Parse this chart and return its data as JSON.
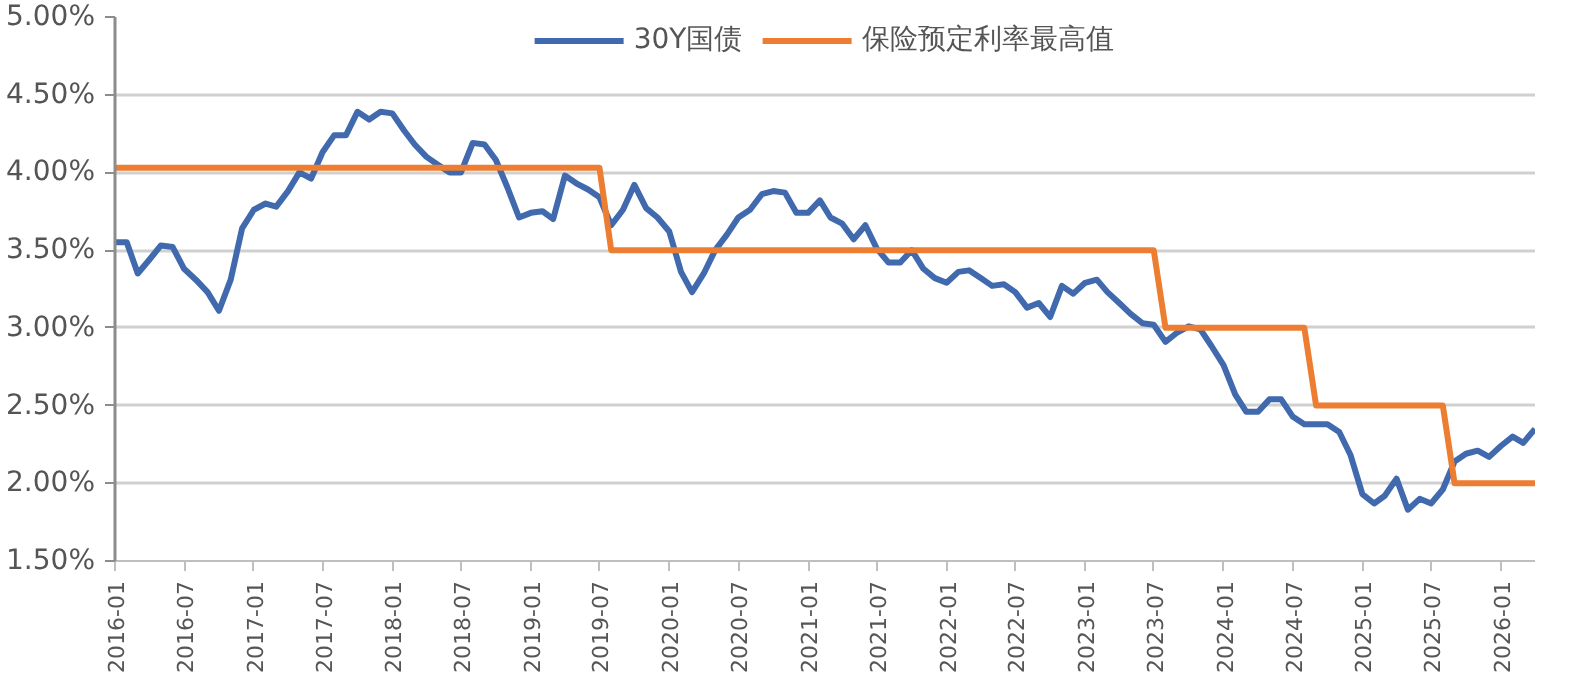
{
  "chart_data": {
    "type": "line",
    "x": [
      "2016-01",
      "2016-02",
      "2016-03",
      "2016-04",
      "2016-05",
      "2016-06",
      "2016-07",
      "2016-08",
      "2016-09",
      "2016-10",
      "2016-11",
      "2016-12",
      "2017-01",
      "2017-02",
      "2017-03",
      "2017-04",
      "2017-05",
      "2017-06",
      "2017-07",
      "2017-08",
      "2017-09",
      "2017-10",
      "2017-11",
      "2017-12",
      "2018-01",
      "2018-02",
      "2018-03",
      "2018-04",
      "2018-05",
      "2018-06",
      "2018-07",
      "2018-08",
      "2018-09",
      "2018-10",
      "2018-11",
      "2018-12",
      "2019-01",
      "2019-02",
      "2019-03",
      "2019-04",
      "2019-05",
      "2019-06",
      "2019-07",
      "2019-08",
      "2019-09",
      "2019-10",
      "2019-11",
      "2019-12",
      "2020-01",
      "2020-02",
      "2020-03",
      "2020-04",
      "2020-05",
      "2020-06",
      "2020-07",
      "2020-08",
      "2020-09",
      "2020-10",
      "2020-11",
      "2020-12",
      "2021-01",
      "2021-02",
      "2021-03",
      "2021-04",
      "2021-05",
      "2021-06",
      "2021-07",
      "2021-08",
      "2021-09",
      "2021-10",
      "2021-11",
      "2021-12",
      "2022-01",
      "2022-02",
      "2022-03",
      "2022-04",
      "2022-05",
      "2022-06",
      "2022-07",
      "2022-08",
      "2022-09",
      "2022-10",
      "2022-11",
      "2022-12",
      "2023-01",
      "2023-02",
      "2023-03",
      "2023-04",
      "2023-05",
      "2023-06",
      "2023-07",
      "2023-08",
      "2023-09",
      "2023-10",
      "2023-11",
      "2023-12",
      "2024-01",
      "2024-02",
      "2024-03",
      "2024-04",
      "2024-05",
      "2024-06",
      "2024-07",
      "2024-08",
      "2024-09",
      "2024-10",
      "2024-11",
      "2024-12",
      "2025-01",
      "2025-02",
      "2025-03",
      "2025-04",
      "2025-05",
      "2025-06",
      "2025-07",
      "2025-08",
      "2025-09",
      "2025-10",
      "2025-11",
      "2025-12",
      "2026-01",
      "2026-02",
      "2026-03",
      "2026-04"
    ],
    "series": [
      {
        "name": "30Y国债",
        "color": "#4169ad",
        "values": [
          3.55,
          3.55,
          3.35,
          3.44,
          3.53,
          3.52,
          3.38,
          3.31,
          3.23,
          3.11,
          3.31,
          3.64,
          3.76,
          3.8,
          3.78,
          3.88,
          4.0,
          3.96,
          4.13,
          4.24,
          4.24,
          4.39,
          4.34,
          4.39,
          4.38,
          4.27,
          4.18,
          4.1,
          4.05,
          4.0,
          4.0,
          4.19,
          4.18,
          4.08,
          3.9,
          3.71,
          3.74,
          3.75,
          3.7,
          3.98,
          3.93,
          3.89,
          3.84,
          3.66,
          3.76,
          3.92,
          3.77,
          3.71,
          3.62,
          3.36,
          3.23,
          3.35,
          3.5,
          3.6,
          3.71,
          3.76,
          3.86,
          3.88,
          3.87,
          3.74,
          3.74,
          3.82,
          3.71,
          3.67,
          3.57,
          3.66,
          3.51,
          3.42,
          3.42,
          3.5,
          3.38,
          3.32,
          3.29,
          3.36,
          3.37,
          3.32,
          3.27,
          3.28,
          3.23,
          3.13,
          3.16,
          3.07,
          3.27,
          3.22,
          3.29,
          3.31,
          3.23,
          3.16,
          3.09,
          3.03,
          3.02,
          2.91,
          2.97,
          3.01,
          2.99,
          2.88,
          2.76,
          2.57,
          2.46,
          2.46,
          2.54,
          2.54,
          2.43,
          2.38,
          2.38,
          2.38,
          2.33,
          2.18,
          1.93,
          1.87,
          1.92,
          2.03,
          1.83,
          1.9,
          1.87,
          1.96,
          2.14,
          2.19,
          2.21,
          2.17,
          2.24,
          2.3,
          2.26,
          2.35
        ]
      },
      {
        "name": "保险预定利率最高值",
        "color": "#ed7d31",
        "x": [
          "2016-01",
          "2019-07",
          "2019-08",
          "2023-07",
          "2023-08",
          "2024-08",
          "2024-09",
          "2025-08",
          "2025-09",
          "2026-04"
        ],
        "values": [
          4.03,
          4.03,
          3.5,
          3.5,
          3.0,
          3.0,
          2.5,
          2.5,
          2.0,
          2.0
        ]
      }
    ],
    "xlim": [
      "2016-01",
      "2026-04"
    ],
    "xticks": [
      "2016-01",
      "2016-07",
      "2017-01",
      "2017-07",
      "2018-01",
      "2018-07",
      "2019-01",
      "2019-07",
      "2020-01",
      "2020-07",
      "2021-01",
      "2021-07",
      "2022-01",
      "2022-07",
      "2023-01",
      "2023-07",
      "2024-01",
      "2024-07",
      "2025-01",
      "2025-07",
      "2026-01"
    ],
    "ylim": [
      1.5,
      5.0
    ],
    "yticks": [
      {
        "value": 1.5,
        "label": "1.50%"
      },
      {
        "value": 2.0,
        "label": "2.00%"
      },
      {
        "value": 2.5,
        "label": "2.50%"
      },
      {
        "value": 3.0,
        "label": "3.00%"
      },
      {
        "value": 3.5,
        "label": "3.50%"
      },
      {
        "value": 4.0,
        "label": "4.00%"
      },
      {
        "value": 4.5,
        "label": "4.50%"
      },
      {
        "value": 5.0,
        "label": "5.00%"
      }
    ],
    "grid": "y",
    "legend": "top",
    "marker": "none",
    "line_style": "solid"
  }
}
